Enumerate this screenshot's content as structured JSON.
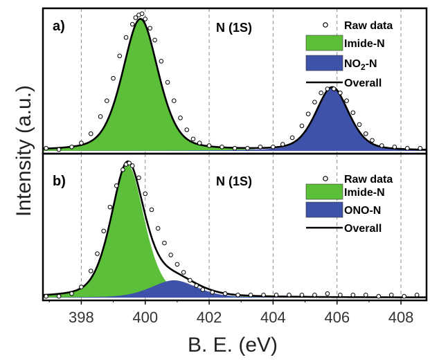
{
  "figure": {
    "ylabel": "Intensity (a.u.)",
    "xlabel": "B. E. (eV)",
    "xticks": [
      "398",
      "400",
      "402",
      "404",
      "406",
      "408"
    ]
  },
  "chart_data": [
    {
      "type": "area",
      "panel_label": "a)",
      "annotation": "N (1S)",
      "xlim": [
        396.8,
        408.8
      ],
      "ylim": [
        0,
        1.06
      ],
      "vgrid": [
        398,
        400,
        402,
        404,
        406,
        408
      ],
      "legend": {
        "placement": "top-right",
        "entries": [
          "Raw data",
          "Imide-N",
          "NO2-N",
          "Overall"
        ],
        "no2_main": "NO",
        "no2_sub": "2",
        "no2_tail": "-N"
      },
      "series": [
        {
          "name": "Imide-N",
          "kind": "fill",
          "color": "#5cbf3a",
          "center": 399.85,
          "height": 1.0,
          "width": 0.78
        },
        {
          "name": "NO2-N",
          "kind": "fill",
          "color": "#3d52a8",
          "center": 405.85,
          "height": 0.48,
          "width": 0.72
        },
        {
          "name": "Overall",
          "kind": "line",
          "color": "#000000"
        },
        {
          "name": "Raw data",
          "kind": "markers",
          "color": "#000000"
        }
      ],
      "raw_points": [
        [
          396.9,
          0.02
        ],
        [
          397.3,
          0.01
        ],
        [
          397.7,
          0.03
        ],
        [
          398.0,
          0.06
        ],
        [
          398.3,
          0.13
        ],
        [
          398.6,
          0.26
        ],
        [
          398.8,
          0.38
        ],
        [
          399.0,
          0.55
        ],
        [
          399.2,
          0.72
        ],
        [
          399.4,
          0.86
        ],
        [
          399.6,
          0.96
        ],
        [
          399.7,
          1.01
        ],
        [
          399.8,
          1.03
        ],
        [
          399.9,
          1.04
        ],
        [
          400.0,
          1.0
        ],
        [
          400.15,
          0.93
        ],
        [
          400.3,
          0.84
        ],
        [
          400.5,
          0.68
        ],
        [
          400.7,
          0.52
        ],
        [
          400.9,
          0.38
        ],
        [
          401.1,
          0.25
        ],
        [
          401.3,
          0.16
        ],
        [
          401.5,
          0.09
        ],
        [
          401.7,
          0.06
        ],
        [
          402.0,
          0.04
        ],
        [
          402.4,
          0.03
        ],
        [
          402.8,
          0.02
        ],
        [
          403.2,
          0.02
        ],
        [
          403.6,
          0.03
        ],
        [
          404.0,
          0.03
        ],
        [
          404.3,
          0.05
        ],
        [
          404.6,
          0.1
        ],
        [
          404.9,
          0.19
        ],
        [
          405.1,
          0.28
        ],
        [
          405.3,
          0.37
        ],
        [
          405.5,
          0.44
        ],
        [
          405.7,
          0.47
        ],
        [
          405.9,
          0.47
        ],
        [
          406.1,
          0.44
        ],
        [
          406.3,
          0.38
        ],
        [
          406.5,
          0.29
        ],
        [
          406.7,
          0.2
        ],
        [
          406.9,
          0.13
        ],
        [
          407.1,
          0.08
        ],
        [
          407.4,
          0.04
        ],
        [
          407.8,
          0.03
        ],
        [
          408.2,
          0.02
        ],
        [
          408.6,
          0.02
        ]
      ]
    },
    {
      "type": "area",
      "panel_label": "b)",
      "annotation": "N (1S)",
      "xlim": [
        396.8,
        408.8
      ],
      "ylim": [
        0,
        1.06
      ],
      "vgrid": [
        398,
        400,
        402,
        404,
        406,
        408
      ],
      "legend": {
        "placement": "top-right",
        "entries": [
          "Raw data",
          "Imide-N",
          "ONO-N",
          "Overall"
        ]
      },
      "series": [
        {
          "name": "Imide-N",
          "kind": "fill",
          "color": "#5cbf3a",
          "center": 399.45,
          "height": 1.0,
          "width": 0.72
        },
        {
          "name": "ONO-N",
          "kind": "fill",
          "color": "#3d52a8",
          "center": 400.9,
          "height": 0.13,
          "width": 1.0
        },
        {
          "name": "Overall",
          "kind": "line",
          "color": "#000000"
        },
        {
          "name": "Raw data",
          "kind": "markers",
          "color": "#000000"
        }
      ],
      "raw_points": [
        [
          396.9,
          0.01
        ],
        [
          397.3,
          0.01
        ],
        [
          397.7,
          0.03
        ],
        [
          398.0,
          0.08
        ],
        [
          398.3,
          0.2
        ],
        [
          398.5,
          0.33
        ],
        [
          398.7,
          0.5
        ],
        [
          398.9,
          0.68
        ],
        [
          399.1,
          0.84
        ],
        [
          399.3,
          0.96
        ],
        [
          399.4,
          1.0
        ],
        [
          399.5,
          1.01
        ],
        [
          399.6,
          0.99
        ],
        [
          399.8,
          0.9
        ],
        [
          400.0,
          0.78
        ],
        [
          400.2,
          0.66
        ],
        [
          400.4,
          0.52
        ],
        [
          400.6,
          0.41
        ],
        [
          400.8,
          0.32
        ],
        [
          401.0,
          0.25
        ],
        [
          401.2,
          0.19
        ],
        [
          401.4,
          0.13
        ],
        [
          401.6,
          0.09
        ],
        [
          401.8,
          0.06
        ],
        [
          402.1,
          0.04
        ],
        [
          402.5,
          0.03
        ],
        [
          402.9,
          0.02
        ],
        [
          403.3,
          0.02
        ],
        [
          403.7,
          0.02
        ],
        [
          404.1,
          0.02
        ],
        [
          404.5,
          0.02
        ],
        [
          404.9,
          0.02
        ],
        [
          405.3,
          0.02
        ],
        [
          405.7,
          0.03
        ],
        [
          406.1,
          0.02
        ],
        [
          406.5,
          0.02
        ],
        [
          406.9,
          0.02
        ],
        [
          407.3,
          0.01
        ],
        [
          407.7,
          0.02
        ],
        [
          408.1,
          0.01
        ],
        [
          408.5,
          0.02
        ]
      ]
    }
  ],
  "colors": {
    "grid": "#8a8a8a",
    "axis": "#000000"
  },
  "icons": {
    "raw_marker": "open-circle-icon"
  }
}
